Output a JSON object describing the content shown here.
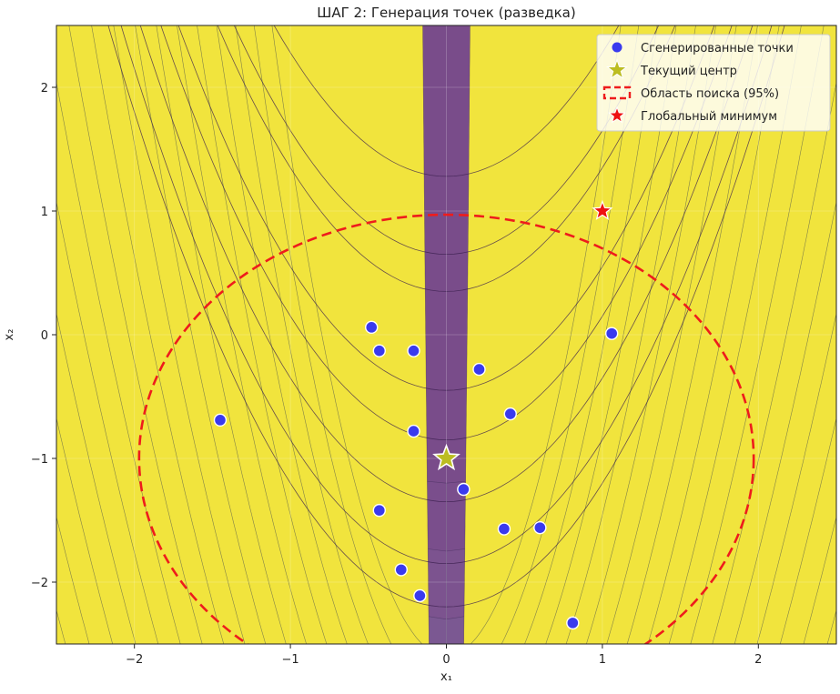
{
  "chart_data": {
    "type": "scatter",
    "title": "ШАГ 2: Генерация точек (разведка)",
    "xlabel": "x₁",
    "ylabel": "x₂",
    "xlim": [
      -2.5,
      2.5
    ],
    "ylim": [
      -2.5,
      2.5
    ],
    "xticks": [
      -2,
      -1,
      0,
      1,
      2
    ],
    "yticks": [
      -2,
      -1,
      0,
      1,
      2
    ],
    "grid": true,
    "background": "contour plot of Rosenbrock function, viridis colormap",
    "series": [
      {
        "name": "Сгенерированные точки",
        "kind": "points",
        "color": "#3a3aee",
        "points": [
          [
            -0.48,
            0.06
          ],
          [
            -0.43,
            -0.13
          ],
          [
            -0.21,
            -0.13
          ],
          [
            0.21,
            -0.28
          ],
          [
            1.06,
            0.01
          ],
          [
            -1.45,
            -0.69
          ],
          [
            0.41,
            -0.64
          ],
          [
            -0.21,
            -0.78
          ],
          [
            0.11,
            -1.25
          ],
          [
            -0.43,
            -1.42
          ],
          [
            0.37,
            -1.57
          ],
          [
            0.6,
            -1.56
          ],
          [
            -0.29,
            -1.9
          ],
          [
            -0.17,
            -2.11
          ],
          [
            0.81,
            -2.33
          ]
        ]
      },
      {
        "name": "Текущий центр",
        "kind": "star",
        "color": "#bcbd22",
        "points": [
          [
            0.0,
            -1.0
          ]
        ]
      },
      {
        "name": "Область поиска (95%)",
        "kind": "circle",
        "color": "#ee1c1c",
        "center": [
          0.0,
          -1.0
        ],
        "radius": 1.97
      },
      {
        "name": "Глобальный минимум",
        "kind": "star",
        "color": "#ee1111",
        "points": [
          [
            1.0,
            1.0
          ]
        ]
      }
    ],
    "legend_position": "top-right"
  }
}
